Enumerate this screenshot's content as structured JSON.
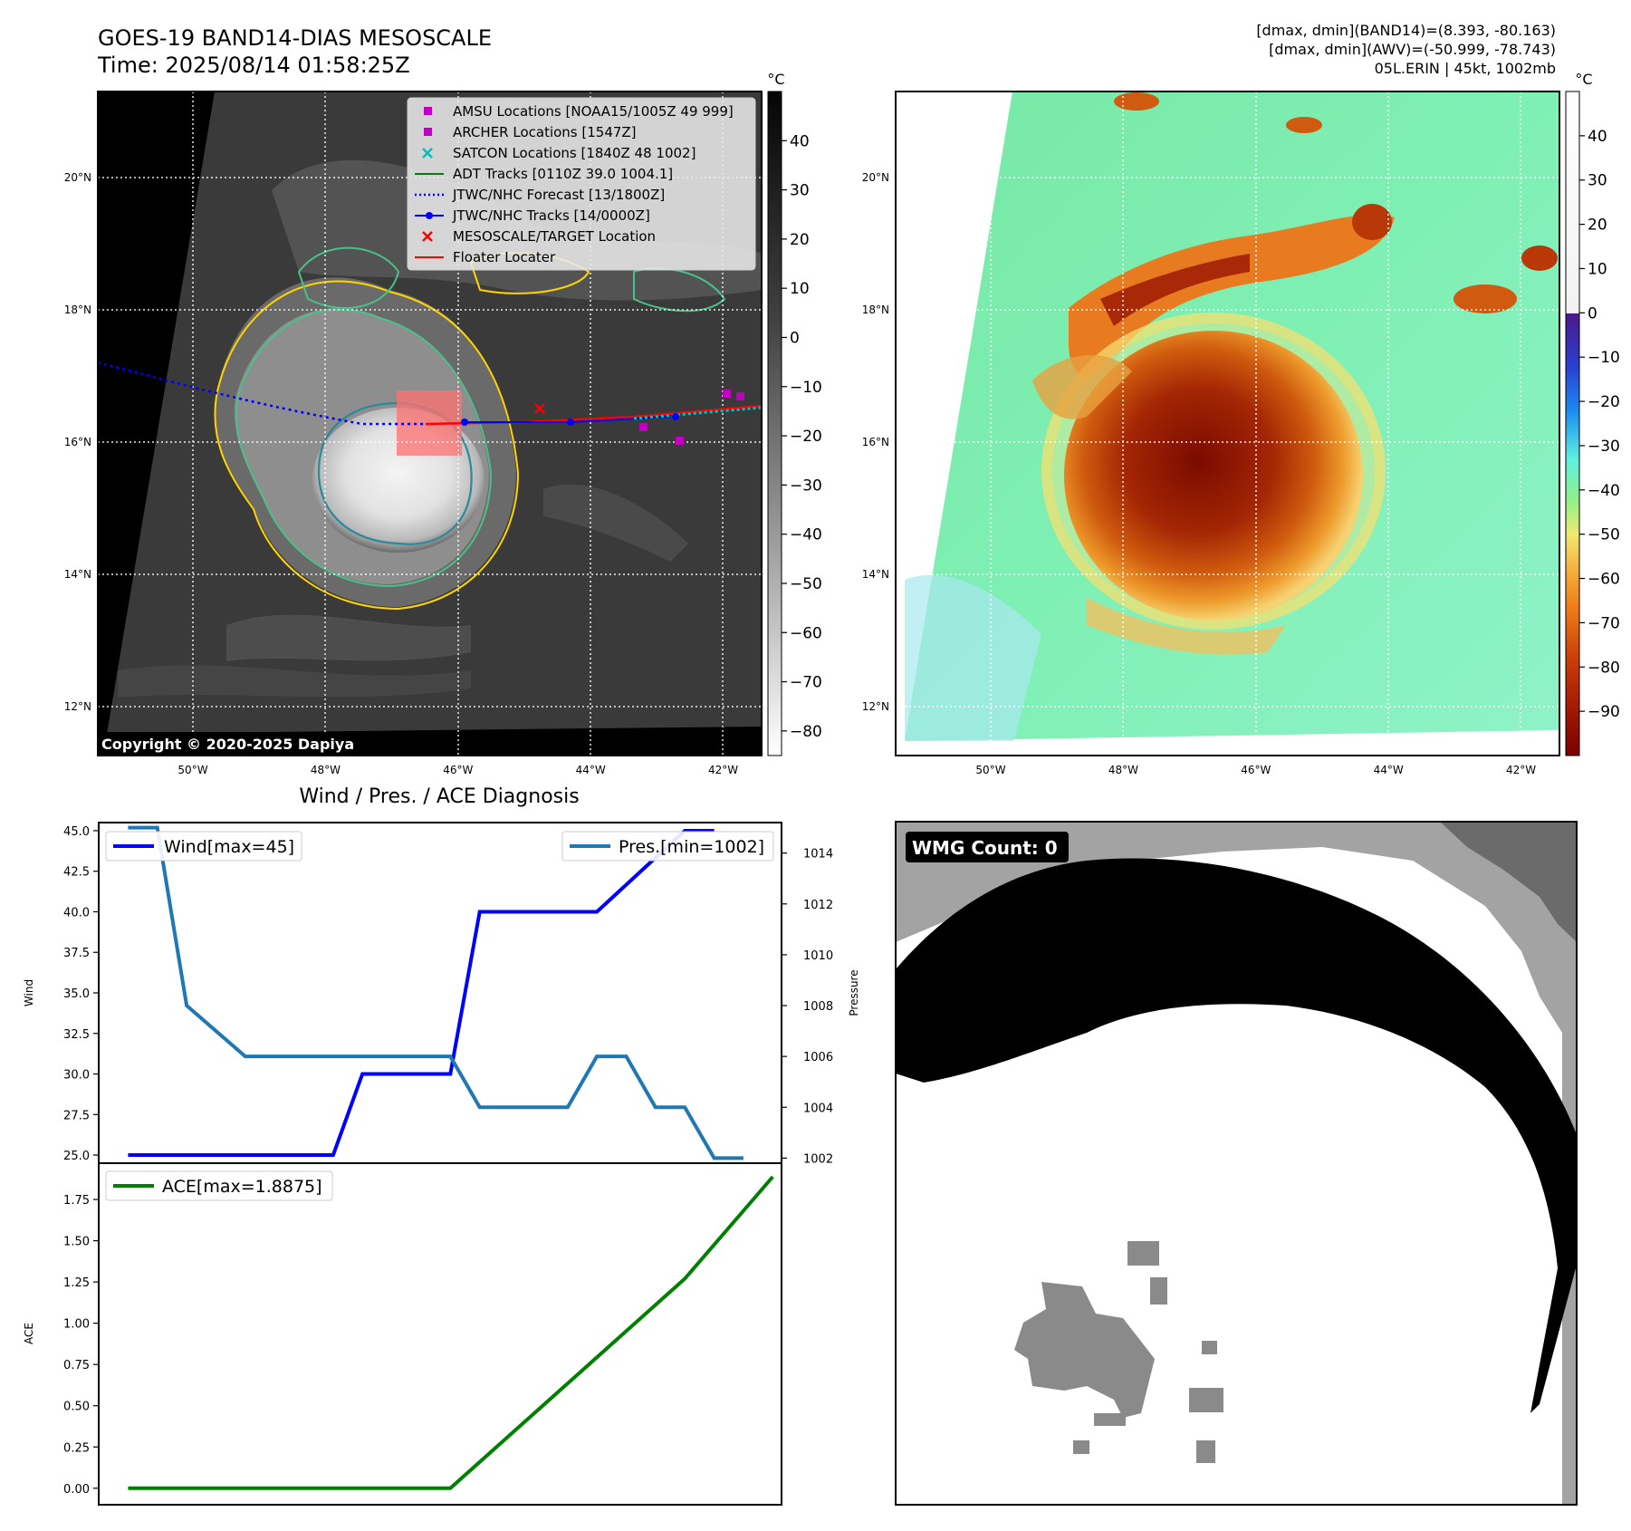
{
  "header": {
    "title_line1": "GOES-19 BAND14-DIAS MESOSCALE",
    "title_line2": "Time: 2025/08/14 01:58:25Z",
    "stats_line1": "[dmax, dmin](BAND14)=(8.393, -80.163)",
    "stats_line2": "[dmax, dmin](AWV)=(-50.999, -78.743)",
    "stats_line3": "05L.ERIN | 45kt, 1002mb"
  },
  "map": {
    "lat_labels": [
      "20°N",
      "18°N",
      "16°N",
      "14°N",
      "12°N"
    ],
    "lon_labels": [
      "50°W",
      "48°W",
      "46°W",
      "44°W",
      "42°W"
    ],
    "lat_values": [
      20,
      18,
      16,
      14,
      12
    ],
    "lon_values": [
      -50,
      -48,
      -46,
      -44,
      -42
    ],
    "copyright": "Copyright © 2020-2025 Dapiya",
    "legend": [
      {
        "label": "AMSU Locations [NOAA15/1005Z 49 999]",
        "marker": "square",
        "color": "#c000c0"
      },
      {
        "label": "ARCHER Locations [1547Z]",
        "marker": "square",
        "color": "#c000c0"
      },
      {
        "label": "SATCON Locations [1840Z 48 1002]",
        "marker": "x",
        "color": "#00bfbf"
      },
      {
        "label": "ADT Tracks [0110Z 39.0 1004.1]",
        "marker": "line",
        "color": "#008000"
      },
      {
        "label": "JTWC/NHC Forecast [13/1800Z]",
        "marker": "dotted",
        "color": "#0000ff"
      },
      {
        "label": "JTWC/NHC Tracks [14/0000Z]",
        "marker": "line-dot",
        "color": "#0000ff"
      },
      {
        "label": "MESOSCALE/TARGET Location",
        "marker": "x",
        "color": "#ff0000"
      },
      {
        "label": "Floater Locater",
        "marker": "line",
        "color": "#ff0000"
      }
    ]
  },
  "colorbar_ir": {
    "unit": "°C",
    "ticks": [
      "40",
      "30",
      "20",
      "10",
      "0",
      "−10",
      "−20",
      "−30",
      "−40",
      "−50",
      "−60",
      "−70",
      "−80"
    ],
    "tick_values": [
      40,
      30,
      20,
      10,
      0,
      -10,
      -20,
      -30,
      -40,
      -50,
      -60,
      -70,
      -80
    ],
    "range": [
      -85,
      50
    ]
  },
  "colorbar_awv": {
    "unit": "°C",
    "ticks": [
      "40",
      "30",
      "20",
      "10",
      "0",
      "−10",
      "−20",
      "−30",
      "−40",
      "−50",
      "−60",
      "−70",
      "−80",
      "−90"
    ],
    "tick_values": [
      40,
      30,
      20,
      10,
      0,
      -10,
      -20,
      -30,
      -40,
      -50,
      -60,
      -70,
      -80,
      -90
    ],
    "range": [
      -100,
      50
    ]
  },
  "wmg": {
    "label": "WMG Count: 0"
  },
  "chart_data": [
    {
      "type": "line",
      "title": "Wind / Pres. / ACE Diagnosis",
      "ylabel": "Wind",
      "ylabel_right": "Pressure",
      "ylim": [
        24.5,
        45.5
      ],
      "ylim_right": [
        1001.8,
        1015.2
      ],
      "y_ticks": [
        45.0,
        42.5,
        40.0,
        37.5,
        35.0,
        32.5,
        30.0,
        27.5,
        25.0
      ],
      "y_tick_labels": [
        "45.0",
        "42.5",
        "40.0",
        "37.5",
        "35.0",
        "32.5",
        "30.0",
        "27.5",
        "25.0"
      ],
      "y_right_ticks": [
        1014,
        1012,
        1010,
        1008,
        1006,
        1004,
        1002
      ],
      "y_right_tick_labels": [
        "1014",
        "1012",
        "1010",
        "1008",
        "1006",
        "1004",
        "1002"
      ],
      "x_index_range": [
        0,
        22
      ],
      "series": [
        {
          "name": "Wind[max=45]",
          "color": "#0000ff",
          "axis": "left",
          "x": [
            0,
            7,
            8,
            11,
            12,
            16,
            19,
            20
          ],
          "y": [
            25,
            25,
            30,
            30,
            40,
            40,
            45,
            45
          ]
        },
        {
          "name": "Pres.[min=1002]",
          "color": "#1f77b4",
          "axis": "right",
          "x": [
            0,
            1,
            2,
            4,
            11,
            12,
            15,
            16,
            17,
            18,
            19,
            20,
            21
          ],
          "y": [
            1015,
            1015,
            1008,
            1006,
            1006,
            1004,
            1004,
            1006,
            1006,
            1004,
            1004,
            1002,
            1002
          ]
        }
      ]
    },
    {
      "type": "line",
      "ylabel": "ACE",
      "ylim": [
        -0.1,
        1.97
      ],
      "y_ticks": [
        0.0,
        0.25,
        0.5,
        0.75,
        1.0,
        1.25,
        1.5,
        1.75
      ],
      "y_tick_labels": [
        "0.00",
        "0.25",
        "0.50",
        "0.75",
        "1.00",
        "1.25",
        "1.50",
        "1.75"
      ],
      "x_index_range": [
        -1,
        22.3
      ],
      "series": [
        {
          "name": "ACE[max=1.8875]",
          "color": "#008000",
          "x": [
            0,
            11,
            19,
            22
          ],
          "y": [
            0,
            0,
            1.27,
            1.8875
          ]
        }
      ]
    }
  ]
}
